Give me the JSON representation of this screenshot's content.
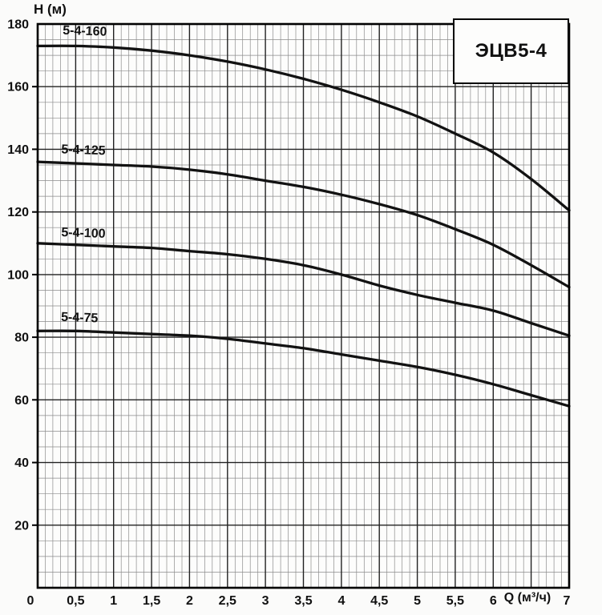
{
  "page": {
    "y_axis_title": "H (м)",
    "x_axis_title": "Q (м³/ч)",
    "title_box_label": "ЭЦВ5-4"
  },
  "colors": {
    "curve": "#121212",
    "grid_minor": "#8c8c8c",
    "grid_major": "#222222",
    "plot_border": "#000000",
    "background": "#fbfbfa",
    "text": "#111111"
  },
  "chart_data": {
    "type": "line",
    "title": "ЭЦВ5-4",
    "xlabel": "Q (м³/ч)",
    "ylabel": "H (м)",
    "xlim": [
      0,
      7
    ],
    "ylim": [
      0,
      180
    ],
    "grid": {
      "on": true,
      "x_minor_step": 0.1,
      "x_major_step": 0.5,
      "y_minor_step": 5,
      "y_major_step": 20
    },
    "legend_position": "labels-on-curves",
    "x": [
      0,
      0.5,
      1,
      1.5,
      2,
      2.5,
      3,
      3.5,
      4,
      4.5,
      5,
      5.5,
      6,
      6.5,
      7
    ],
    "series": [
      {
        "name": "5-4-160",
        "values": [
          173,
          173,
          172.5,
          171.5,
          170,
          168,
          165.5,
          162.5,
          159,
          155,
          150.5,
          145,
          139,
          130.5,
          120.5
        ],
        "label_q": 0.62,
        "label_h": 176.5
      },
      {
        "name": "5-4-125",
        "values": [
          136,
          135.5,
          135,
          134.5,
          133.5,
          132,
          130,
          128,
          125.5,
          122.5,
          119,
          114.5,
          109.5,
          103,
          96
        ],
        "label_q": 0.6,
        "label_h": 138.5
      },
      {
        "name": "5-4-100",
        "values": [
          110,
          109.5,
          109,
          108.5,
          107.5,
          106.5,
          105,
          103,
          100,
          96.5,
          93.5,
          91,
          88.5,
          84.5,
          80.5
        ],
        "label_q": 0.6,
        "label_h": 112
      },
      {
        "name": "5-4-75",
        "values": [
          82,
          82,
          81.5,
          81,
          80.5,
          79.5,
          78,
          76.5,
          74.5,
          72.5,
          70.5,
          68,
          65,
          61.5,
          58
        ],
        "label_q": 0.55,
        "label_h": 85
      }
    ],
    "y_ticks": [
      {
        "v": 180,
        "label": "180"
      },
      {
        "v": 160,
        "label": "160"
      },
      {
        "v": 140,
        "label": "140"
      },
      {
        "v": 120,
        "label": "120"
      },
      {
        "v": 100,
        "label": "100"
      },
      {
        "v": 80,
        "label": "80"
      },
      {
        "v": 60,
        "label": "60"
      },
      {
        "v": 40,
        "label": "40"
      },
      {
        "v": 20,
        "label": "20"
      }
    ],
    "x_ticks": [
      {
        "v": 0,
        "label": "0"
      },
      {
        "v": 0.5,
        "label": "0,5"
      },
      {
        "v": 1,
        "label": "1"
      },
      {
        "v": 1.5,
        "label": "1,5"
      },
      {
        "v": 2,
        "label": "2"
      },
      {
        "v": 2.5,
        "label": "2,5"
      },
      {
        "v": 3,
        "label": "3"
      },
      {
        "v": 3.5,
        "label": "3,5"
      },
      {
        "v": 4,
        "label": "4"
      },
      {
        "v": 4.5,
        "label": "4,5"
      },
      {
        "v": 5,
        "label": "5"
      },
      {
        "v": 5.5,
        "label": "5,5"
      },
      {
        "v": 6,
        "label": "6"
      },
      {
        "v": 7,
        "label": "7"
      }
    ],
    "xlabel_q_position": 6.45
  }
}
